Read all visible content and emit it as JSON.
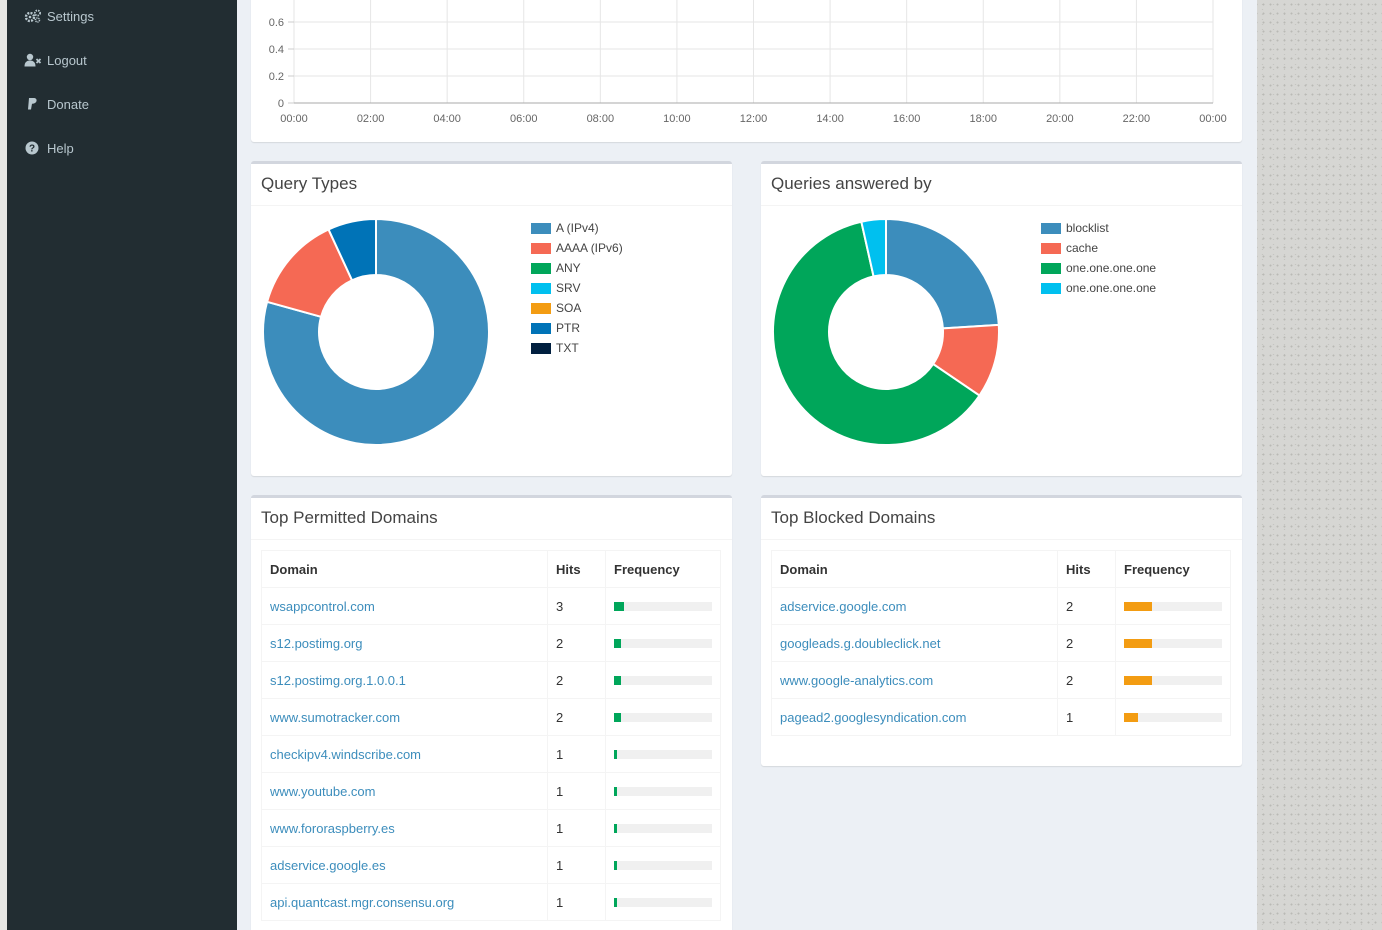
{
  "sidebar": {
    "items": [
      {
        "label": "Settings",
        "icon": "gears-icon"
      },
      {
        "label": "Logout",
        "icon": "user-times-icon"
      },
      {
        "label": "Donate",
        "icon": "paypal-icon"
      },
      {
        "label": "Help",
        "icon": "question-circle-icon"
      }
    ]
  },
  "top_chart": {
    "chart_data": {
      "type": "line",
      "title": "",
      "x_tick_labels": [
        "00:00",
        "02:00",
        "04:00",
        "06:00",
        "08:00",
        "10:00",
        "12:00",
        "14:00",
        "16:00",
        "18:00",
        "20:00",
        "22:00",
        "00:00"
      ],
      "y_tick_labels": [
        "0",
        "0.2",
        "0.4",
        "0.6"
      ],
      "ylim": [
        0,
        0.6
      ],
      "grid": true,
      "series": []
    }
  },
  "query_types": {
    "title": "Query Types",
    "chart_data": {
      "type": "pie",
      "donut": true,
      "labels": [
        "A (IPv4)",
        "AAAA (IPv6)",
        "ANY",
        "SRV",
        "SOA",
        "PTR",
        "TXT"
      ],
      "values": [
        79.3,
        13.8,
        0,
        0,
        0,
        6.9,
        0
      ],
      "colors": [
        "#3c8dbc",
        "#f56954",
        "#00a65a",
        "#00c0ef",
        "#f39c12",
        "#0073b7",
        "#001f3f"
      ]
    }
  },
  "answered_by": {
    "title": "Queries answered by",
    "chart_data": {
      "type": "pie",
      "donut": true,
      "labels": [
        "blocklist",
        "cache",
        "one.one.one.one",
        "one.one.one.one"
      ],
      "values": [
        24,
        10.5,
        62,
        3.5
      ],
      "colors": [
        "#3c8dbc",
        "#f56954",
        "#00a65a",
        "#00c0ef"
      ]
    }
  },
  "permitted": {
    "title": "Top Permitted Domains",
    "headers": [
      "Domain",
      "Hits",
      "Frequency"
    ],
    "bar_color": "#00a65a",
    "rows": [
      {
        "domain": "wsappcontrol.com",
        "hits": "3",
        "freq": 0.1
      },
      {
        "domain": "s12.postimg.org",
        "hits": "2",
        "freq": 0.067
      },
      {
        "domain": "s12.postimg.org.1.0.0.1",
        "hits": "2",
        "freq": 0.067
      },
      {
        "domain": "www.sumotracker.com",
        "hits": "2",
        "freq": 0.067
      },
      {
        "domain": "checkipv4.windscribe.com",
        "hits": "1",
        "freq": 0.033
      },
      {
        "domain": "www.youtube.com",
        "hits": "1",
        "freq": 0.033
      },
      {
        "domain": "www.fororaspberry.es",
        "hits": "1",
        "freq": 0.033
      },
      {
        "domain": "adservice.google.es",
        "hits": "1",
        "freq": 0.033
      },
      {
        "domain": "api.quantcast.mgr.consensu.org",
        "hits": "1",
        "freq": 0.033
      }
    ]
  },
  "blocked": {
    "title": "Top Blocked Domains",
    "headers": [
      "Domain",
      "Hits",
      "Frequency"
    ],
    "bar_color": "#f39c12",
    "rows": [
      {
        "domain": "adservice.google.com",
        "hits": "2",
        "freq": 0.286
      },
      {
        "domain": "googleads.g.doubleclick.net",
        "hits": "2",
        "freq": 0.286
      },
      {
        "domain": "www.google-analytics.com",
        "hits": "2",
        "freq": 0.286
      },
      {
        "domain": "pagead2.googlesyndication.com",
        "hits": "1",
        "freq": 0.143
      }
    ]
  }
}
